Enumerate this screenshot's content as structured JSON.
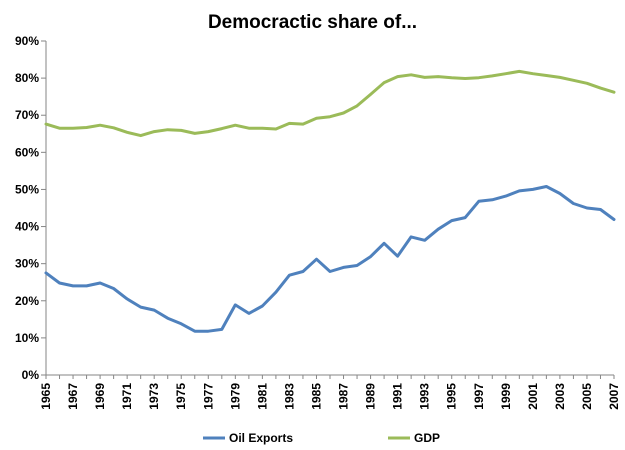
{
  "chart_data": {
    "type": "line",
    "title": "Democractic share of...",
    "xlabel": "",
    "ylabel": "",
    "ylim": [
      0,
      90
    ],
    "y_ticks": [
      "0%",
      "10%",
      "20%",
      "30%",
      "40%",
      "50%",
      "60%",
      "70%",
      "80%",
      "90%"
    ],
    "y_tick_values": [
      0,
      10,
      20,
      30,
      40,
      50,
      60,
      70,
      80,
      90
    ],
    "x": [
      1965,
      1966,
      1967,
      1968,
      1969,
      1970,
      1971,
      1972,
      1973,
      1974,
      1975,
      1976,
      1977,
      1978,
      1979,
      1980,
      1981,
      1982,
      1983,
      1984,
      1985,
      1986,
      1987,
      1988,
      1989,
      1990,
      1991,
      1992,
      1993,
      1994,
      1995,
      1996,
      1997,
      1998,
      1999,
      2000,
      2001,
      2002,
      2003,
      2004,
      2005,
      2006,
      2007
    ],
    "x_tick_labels": [
      "1965",
      "1967",
      "1969",
      "1971",
      "1973",
      "1975",
      "1977",
      "1979",
      "1981",
      "1983",
      "1985",
      "1987",
      "1989",
      "1991",
      "1993",
      "1995",
      "1997",
      "1999",
      "2001",
      "2003",
      "2005",
      "2007"
    ],
    "grid": false,
    "legend_position": "bottom",
    "series": [
      {
        "name": "Oil Exports",
        "color": "#4f81bd",
        "values": [
          27.5,
          24.8,
          24.0,
          24.0,
          24.8,
          23.3,
          20.5,
          18.3,
          17.5,
          15.3,
          13.8,
          11.8,
          11.8,
          12.3,
          18.9,
          16.6,
          18.6,
          22.3,
          26.9,
          27.9,
          31.2,
          27.9,
          29.0,
          29.5,
          31.9,
          35.5,
          32.0,
          37.2,
          36.3,
          39.3,
          41.6,
          42.4,
          46.8,
          47.2,
          48.2,
          49.6,
          50.0,
          50.8,
          48.9,
          46.2,
          45.0,
          44.6,
          41.9
        ]
      },
      {
        "name": "GDP",
        "color": "#9bbb59",
        "values": [
          67.6,
          66.5,
          66.5,
          66.7,
          67.3,
          66.6,
          65.4,
          64.5,
          65.6,
          66.1,
          65.9,
          65.1,
          65.6,
          66.4,
          67.3,
          66.5,
          66.5,
          66.3,
          67.8,
          67.6,
          69.2,
          69.6,
          70.6,
          72.5,
          75.6,
          78.8,
          80.4,
          80.9,
          80.2,
          80.4,
          80.1,
          79.9,
          80.1,
          80.6,
          81.2,
          81.8,
          81.2,
          80.7,
          80.2,
          79.4,
          78.6,
          77.3,
          76.2
        ]
      }
    ]
  }
}
